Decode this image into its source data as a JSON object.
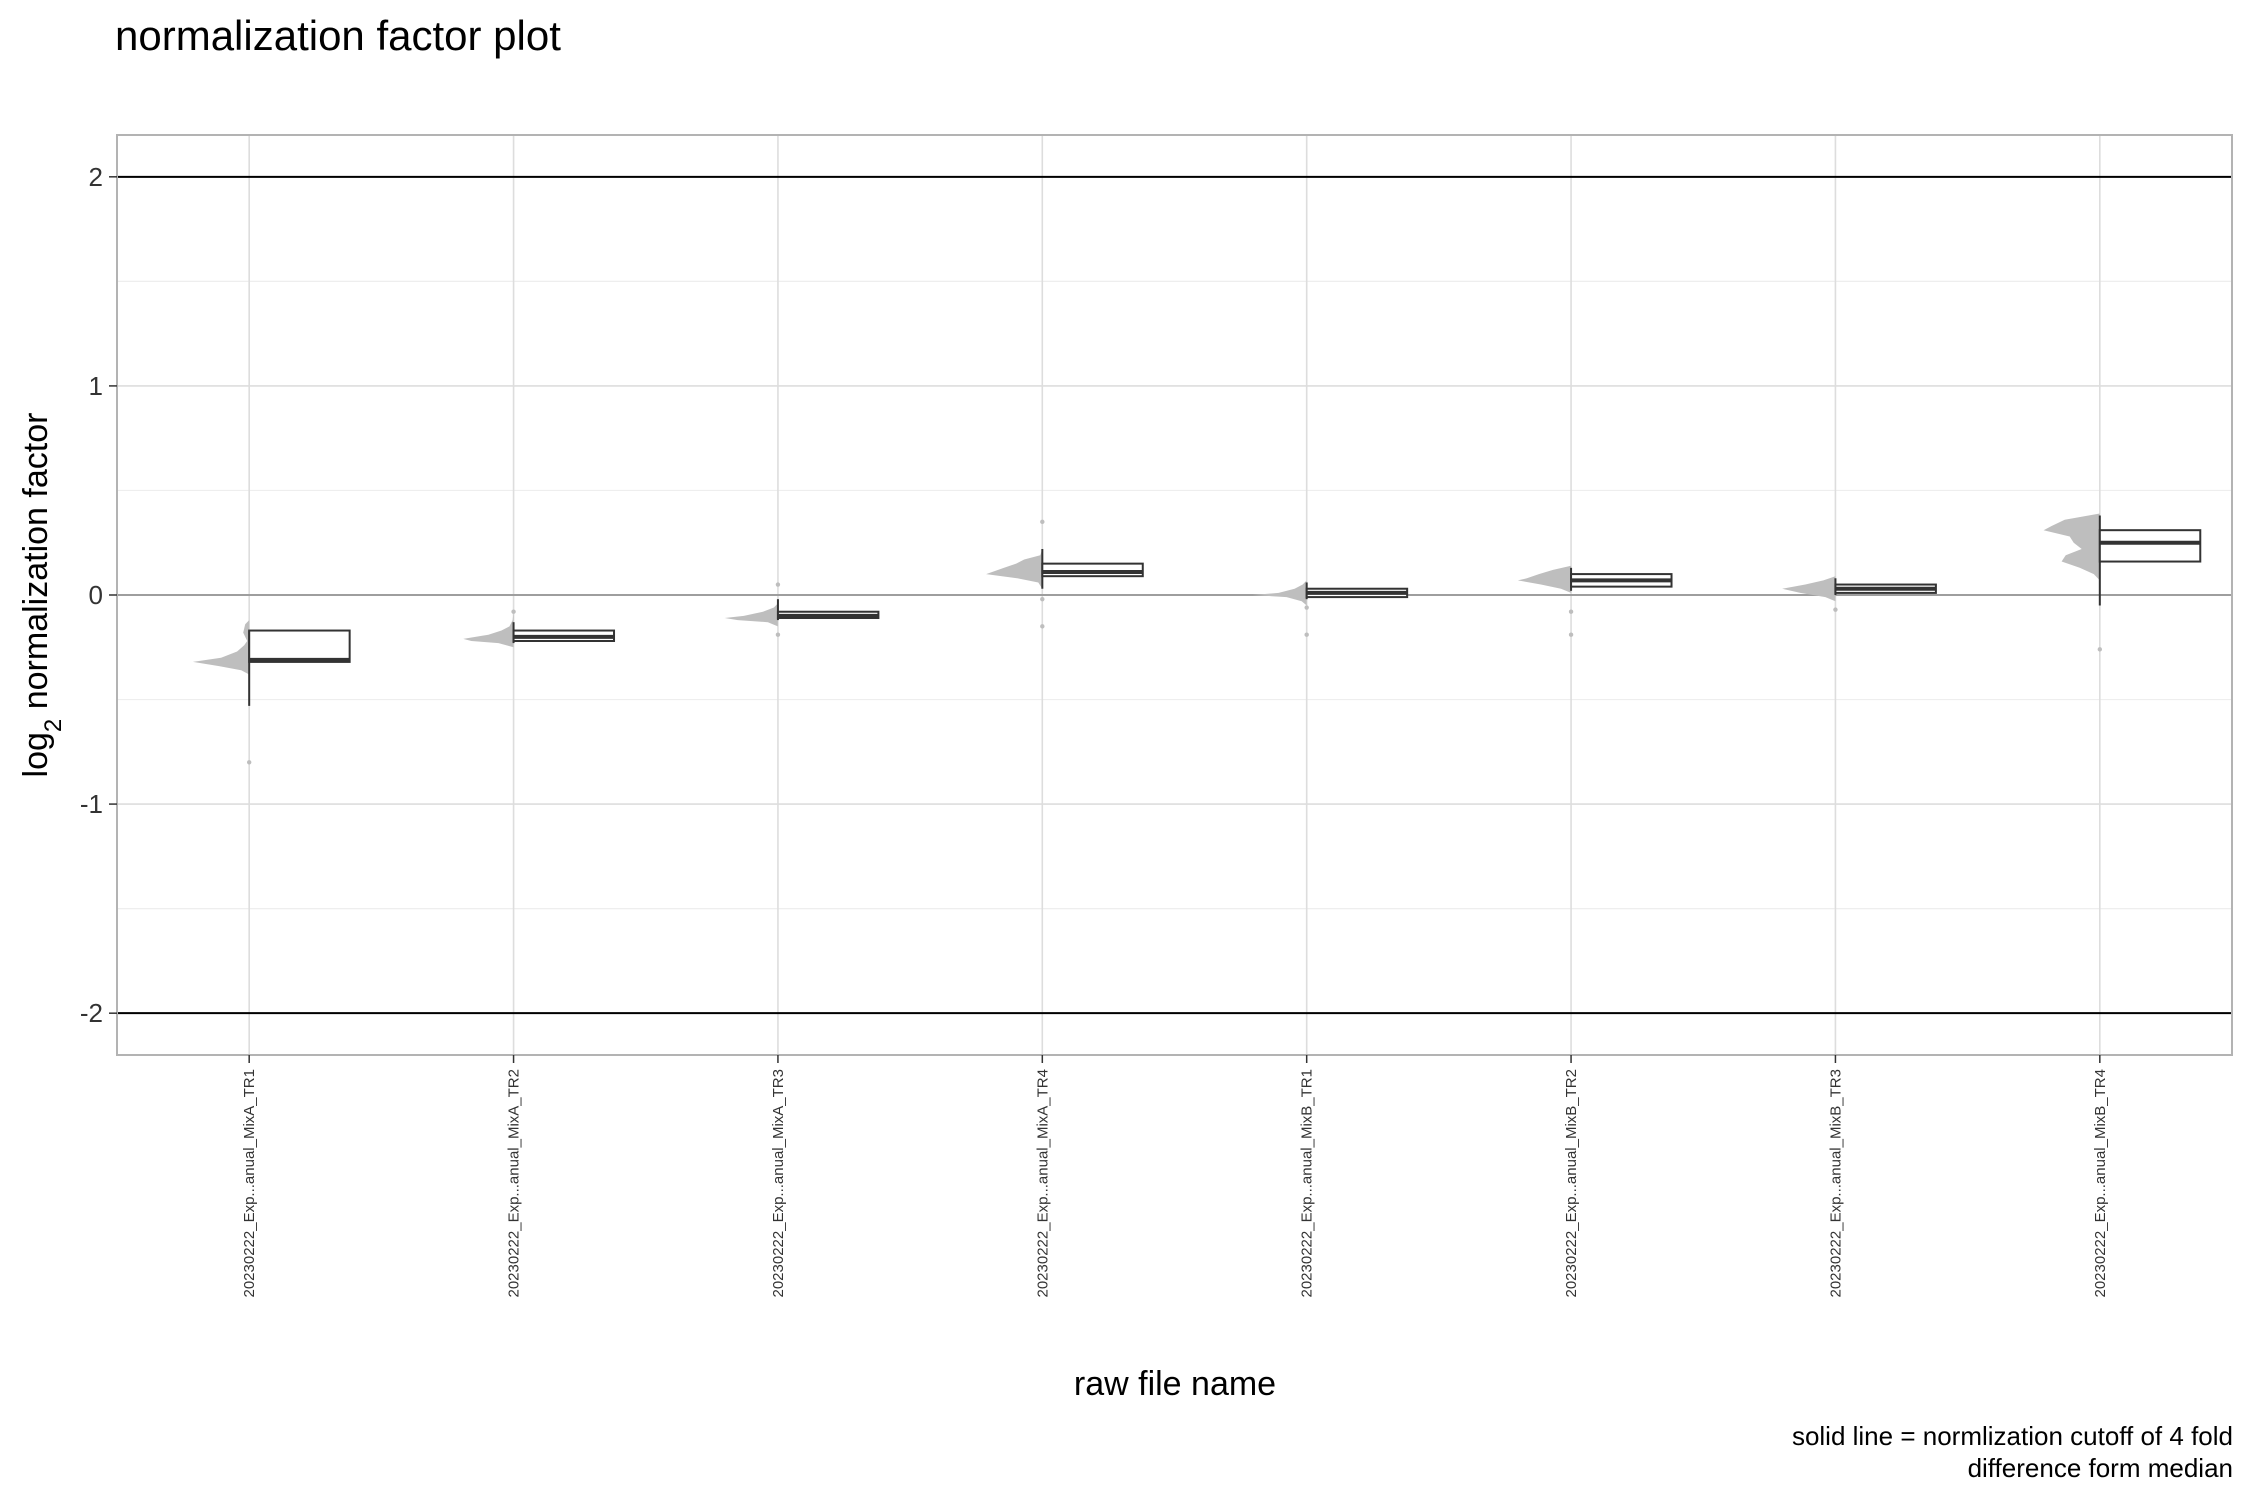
{
  "chart_data": {
    "type": "violin",
    "title": "normalization factor plot",
    "xlabel": "raw file name",
    "ylabel_main": "log",
    "ylabel_sub": "2",
    "ylabel_rest": " normalization factor",
    "caption_lines": [
      "solid line = normlization cutoff of 4 fold",
      "difference form median"
    ],
    "ylim": [
      -2.2,
      2.2
    ],
    "yticks": [
      -2,
      -1,
      0,
      1,
      2
    ],
    "ytick_labels": [
      "-2",
      "-1",
      "0",
      "1",
      "2"
    ],
    "cutoff_lines": [
      2,
      -2
    ],
    "zero_line": 0,
    "grid": true,
    "categories": [
      "20230222_Exp...anual_MixA_TR1",
      "20230222_Exp...anual_MixA_TR2",
      "20230222_Exp...anual_MixA_TR3",
      "20230222_Exp...anual_MixA_TR4",
      "20230222_Exp...anual_MixB_TR1",
      "20230222_Exp...anual_MixB_TR2",
      "20230222_Exp...anual_MixB_TR3",
      "20230222_Exp...anual_MixB_TR4"
    ],
    "series": [
      {
        "boxplot": {
          "whisker_low": -0.53,
          "q1": -0.32,
          "median": -0.31,
          "q3": -0.17,
          "whisker_high": -0.17
        },
        "outliers": [
          -0.8
        ],
        "density": [
          [
            -0.12,
            0.0
          ],
          [
            -0.14,
            0.04
          ],
          [
            -0.18,
            0.06
          ],
          [
            -0.22,
            0.02
          ],
          [
            -0.24,
            0.05
          ],
          [
            -0.27,
            0.12
          ],
          [
            -0.3,
            0.28
          ],
          [
            -0.32,
            0.56
          ],
          [
            -0.34,
            0.3
          ],
          [
            -0.36,
            0.08
          ],
          [
            -0.38,
            0.0
          ]
        ]
      },
      {
        "boxplot": {
          "whisker_low": -0.23,
          "q1": -0.22,
          "median": -0.2,
          "q3": -0.17,
          "whisker_high": -0.13
        },
        "outliers": [
          -0.08
        ],
        "density": [
          [
            -0.08,
            0.0
          ],
          [
            -0.12,
            0.01
          ],
          [
            -0.15,
            0.04
          ],
          [
            -0.17,
            0.12
          ],
          [
            -0.19,
            0.25
          ],
          [
            -0.21,
            0.5
          ],
          [
            -0.22,
            0.42
          ],
          [
            -0.23,
            0.15
          ],
          [
            -0.25,
            0.0
          ]
        ]
      },
      {
        "boxplot": {
          "whisker_low": -0.12,
          "q1": -0.11,
          "median": -0.1,
          "q3": -0.08,
          "whisker_high": -0.02
        },
        "outliers": [
          0.05,
          -0.19
        ],
        "density": [
          [
            -0.04,
            0.0
          ],
          [
            -0.06,
            0.04
          ],
          [
            -0.08,
            0.15
          ],
          [
            -0.1,
            0.34
          ],
          [
            -0.11,
            0.53
          ],
          [
            -0.12,
            0.4
          ],
          [
            -0.13,
            0.1
          ],
          [
            -0.15,
            0.0
          ]
        ]
      },
      {
        "boxplot": {
          "whisker_low": 0.03,
          "q1": 0.09,
          "median": 0.11,
          "q3": 0.15,
          "whisker_high": 0.22
        },
        "outliers": [
          0.35,
          -0.02,
          -0.15
        ],
        "density": [
          [
            0.22,
            0.0
          ],
          [
            0.19,
            0.02
          ],
          [
            0.17,
            0.18
          ],
          [
            0.15,
            0.26
          ],
          [
            0.13,
            0.38
          ],
          [
            0.11,
            0.5
          ],
          [
            0.1,
            0.56
          ],
          [
            0.08,
            0.25
          ],
          [
            0.06,
            0.04
          ],
          [
            0.03,
            0.0
          ]
        ]
      },
      {
        "boxplot": {
          "whisker_low": -0.02,
          "q1": -0.01,
          "median": 0.01,
          "q3": 0.03,
          "whisker_high": 0.06
        },
        "outliers": [
          -0.06,
          -0.19
        ],
        "density": [
          [
            0.07,
            0.0
          ],
          [
            0.05,
            0.04
          ],
          [
            0.03,
            0.12
          ],
          [
            0.01,
            0.28
          ],
          [
            0.0,
            0.54
          ],
          [
            -0.01,
            0.2
          ],
          [
            -0.03,
            0.05
          ],
          [
            -0.05,
            0.0
          ]
        ]
      },
      {
        "boxplot": {
          "whisker_low": 0.02,
          "q1": 0.04,
          "median": 0.07,
          "q3": 0.1,
          "whisker_high": 0.13
        },
        "outliers": [
          -0.08,
          -0.19
        ],
        "density": [
          [
            0.14,
            0.0
          ],
          [
            0.12,
            0.18
          ],
          [
            0.1,
            0.32
          ],
          [
            0.08,
            0.44
          ],
          [
            0.07,
            0.53
          ],
          [
            0.05,
            0.3
          ],
          [
            0.03,
            0.1
          ],
          [
            0.01,
            0.0
          ]
        ]
      },
      {
        "boxplot": {
          "whisker_low": 0.0,
          "q1": 0.01,
          "median": 0.03,
          "q3": 0.05,
          "whisker_high": 0.08
        },
        "outliers": [
          -0.07
        ],
        "density": [
          [
            0.09,
            0.0
          ],
          [
            0.07,
            0.12
          ],
          [
            0.05,
            0.3
          ],
          [
            0.03,
            0.53
          ],
          [
            0.01,
            0.35
          ],
          [
            -0.01,
            0.1
          ],
          [
            -0.03,
            0.0
          ]
        ]
      },
      {
        "boxplot": {
          "whisker_low": -0.05,
          "q1": 0.16,
          "median": 0.25,
          "q3": 0.31,
          "whisker_high": 0.38
        },
        "outliers": [
          -0.26
        ],
        "density": [
          [
            0.39,
            0.0
          ],
          [
            0.36,
            0.35
          ],
          [
            0.33,
            0.48
          ],
          [
            0.31,
            0.56
          ],
          [
            0.28,
            0.3
          ],
          [
            0.25,
            0.26
          ],
          [
            0.22,
            0.18
          ],
          [
            0.19,
            0.34
          ],
          [
            0.16,
            0.38
          ],
          [
            0.13,
            0.2
          ],
          [
            0.1,
            0.06
          ],
          [
            0.07,
            0.0
          ]
        ]
      }
    ],
    "colors": {
      "violin": "#bebebe",
      "box_stroke": "#333333",
      "box_fill": "#ffffff",
      "cutoff": "#000000",
      "zero": "#9e9e9e",
      "grid_major": "#dddddd",
      "grid_minor": "#eeeeee",
      "panel_border": "#b3b3b3"
    }
  }
}
